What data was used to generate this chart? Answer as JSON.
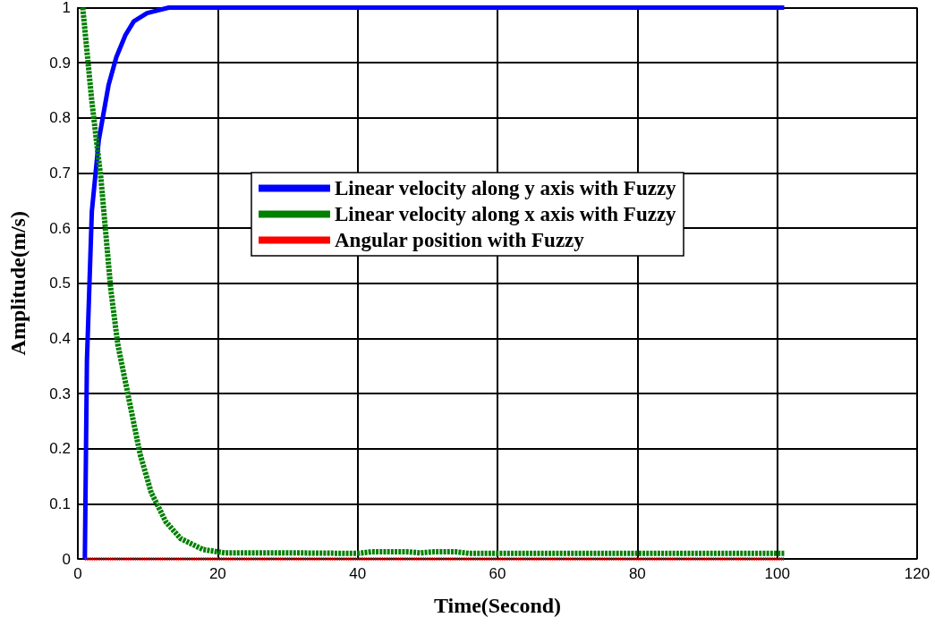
{
  "chart_data": {
    "type": "line",
    "xlabel": "Time(Second)",
    "ylabel": "Amplitude(m/s)",
    "xlim": [
      0,
      120
    ],
    "ylim": [
      0,
      1
    ],
    "xticks": [
      0,
      20,
      40,
      60,
      80,
      100,
      120
    ],
    "yticks": [
      0,
      0.1,
      0.2,
      0.3,
      0.4,
      0.5,
      0.6,
      0.7,
      0.8,
      0.9,
      1
    ],
    "grid": true,
    "legend": "center",
    "marker": "none",
    "series": [
      {
        "name": "Linear velocity along y axis with Fuzzy",
        "color": "#0000ff",
        "line_style": "solid",
        "x": [
          1,
          1.3,
          2,
          3,
          4.4,
          5.5,
          6.8,
          8,
          9.9,
          13,
          20,
          40,
          60,
          80,
          101
        ],
        "values": [
          0,
          0.36,
          0.63,
          0.76,
          0.86,
          0.91,
          0.95,
          0.975,
          0.99,
          1,
          1,
          1,
          1,
          1,
          1
        ]
      },
      {
        "name": "Linear velocity along x axis with Fuzzy",
        "color": "#008000",
        "line_style": "dashed",
        "x": [
          0.7,
          2,
          3.3,
          4.7,
          5.7,
          7.3,
          8.9,
          10.5,
          12.6,
          14.7,
          17.9,
          21,
          25,
          30,
          40,
          42,
          47,
          49,
          51,
          54,
          56,
          70,
          85,
          101
        ],
        "values": [
          1,
          0.83,
          0.69,
          0.49,
          0.39,
          0.29,
          0.19,
          0.12,
          0.067,
          0.037,
          0.017,
          0.011,
          0.011,
          0.011,
          0.01,
          0.013,
          0.013,
          0.011,
          0.013,
          0.013,
          0.01,
          0.01,
          0.01,
          0.01
        ]
      },
      {
        "name": "Angular position with Fuzzy",
        "color": "#ff0000",
        "line_style": "dotted",
        "x": [
          1,
          101
        ],
        "values": [
          0,
          0
        ]
      }
    ]
  }
}
